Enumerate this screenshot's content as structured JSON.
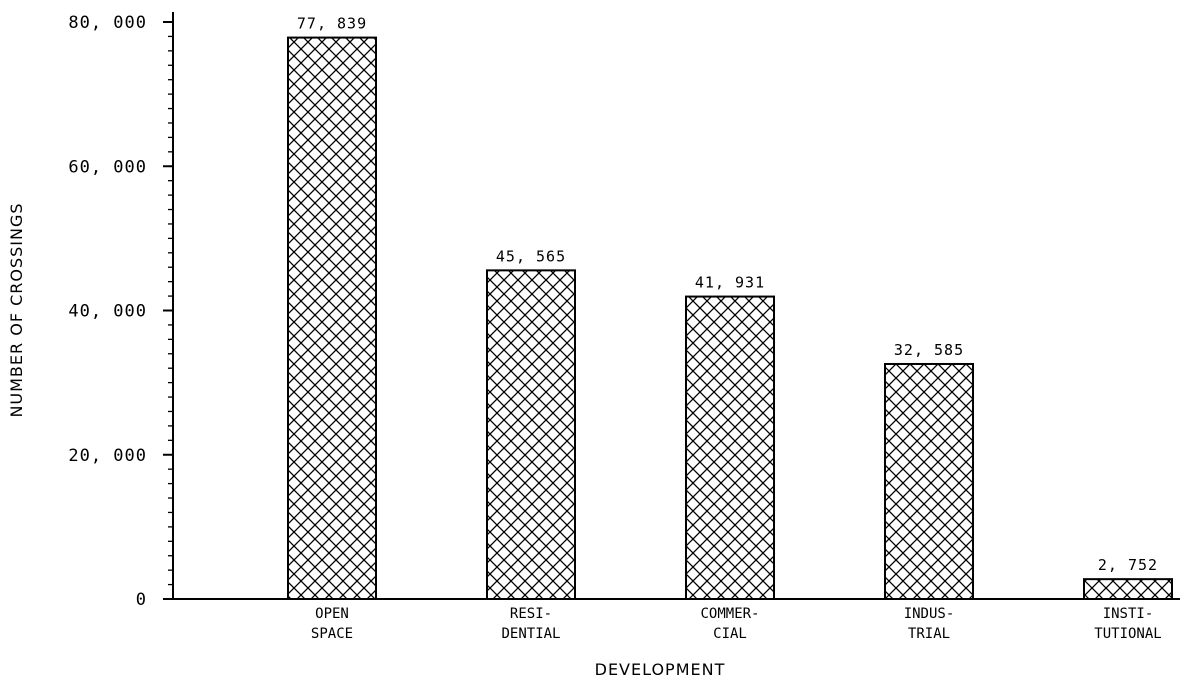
{
  "chart_data": {
    "type": "bar",
    "categories": [
      [
        "OPEN",
        "SPACE"
      ],
      [
        "RESI-",
        "DENTIAL"
      ],
      [
        "COMMER-",
        "CIAL"
      ],
      [
        "INDUS-",
        "TRIAL"
      ],
      [
        "INSTI-",
        "TUTIONAL"
      ]
    ],
    "values": [
      77839,
      45565,
      41931,
      32585,
      2752
    ],
    "value_labels": [
      "77, 839",
      "45, 565",
      "41, 931",
      "32, 585",
      "2, 752"
    ],
    "xlabel": "DEVELOPMENT",
    "ylabel": "NUMBER OF CROSSINGS",
    "ylim": [
      0,
      80000
    ],
    "yticks": [
      0,
      20000,
      40000,
      60000,
      80000
    ],
    "ytick_labels": [
      "0",
      "20, 000",
      "40, 000",
      "60, 000",
      "80, 000"
    ],
    "grid": false,
    "fill_pattern": "crosshatch",
    "bar_color": "#000000",
    "background": "#ffffff"
  }
}
